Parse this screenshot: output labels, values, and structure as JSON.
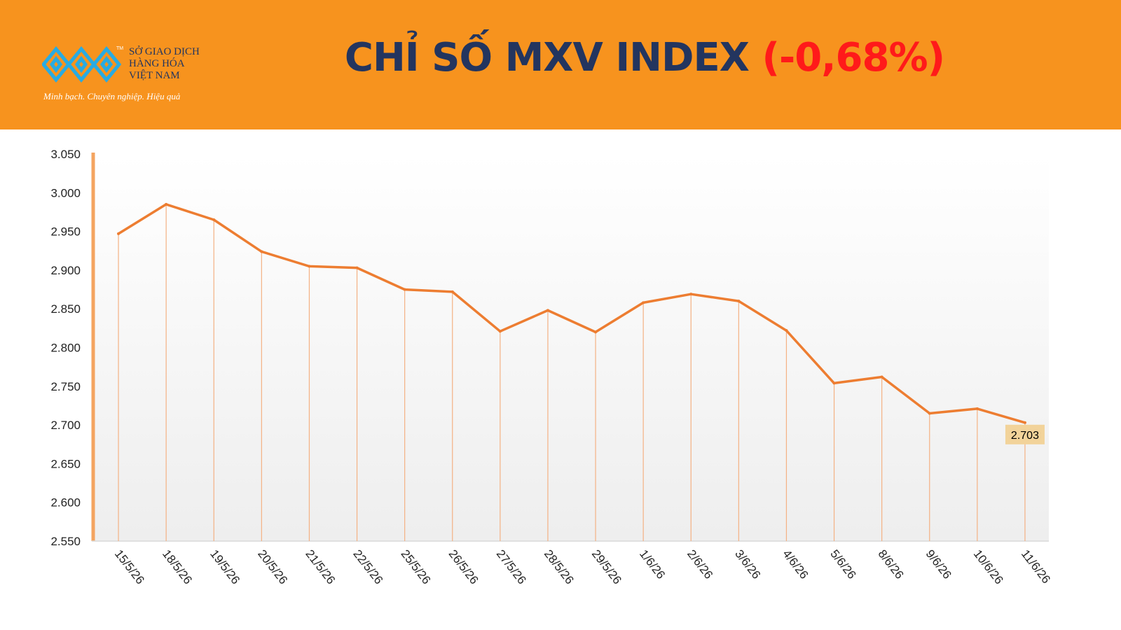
{
  "header": {
    "title_main": "CHỈ SỐ MXV INDEX",
    "title_change": "(-0,68%)",
    "logo": {
      "icon": "mxv-logo-icon",
      "trademark": "TM",
      "line1": "SỞ GIAO DỊCH",
      "line2": "HÀNG HÓA",
      "line3": "VIỆT NAM",
      "slogan": "Minh bạch. Chuyên nghiệp. Hiệu quả"
    }
  },
  "colors": {
    "header_bg": "#f7931e",
    "title": "#23355f",
    "change": "#ff1a1a",
    "line": "#ed7d31",
    "drop_lines": "#f4b183",
    "axis": "#f4a460",
    "label_bg": "#f2d39a"
  },
  "chart_data": {
    "type": "line",
    "categories": [
      "15/5/26",
      "18/5/26",
      "19/5/26",
      "20/5/26",
      "21/5/26",
      "22/5/26",
      "25/5/26",
      "26/5/26",
      "27/5/26",
      "28/5/26",
      "29/5/26",
      "1/6/26",
      "2/6/26",
      "3/6/26",
      "4/6/26",
      "5/6/26",
      "8/6/26",
      "9/6/26",
      "10/6/26",
      "11/6/26"
    ],
    "values": [
      2947,
      2985,
      2965,
      2924,
      2905,
      2903,
      2875,
      2872,
      2821,
      2848,
      2820,
      2858,
      2869,
      2860,
      2822,
      2754,
      2762,
      2715,
      2721,
      2703
    ],
    "ylim": [
      2550,
      3050
    ],
    "yticks": [
      "3.050",
      "3.000",
      "2.950",
      "2.900",
      "2.850",
      "2.800",
      "2.750",
      "2.700",
      "2.650",
      "2.600",
      "2.550"
    ],
    "last_label": "2.703",
    "drop_lines": true,
    "grid": false
  }
}
